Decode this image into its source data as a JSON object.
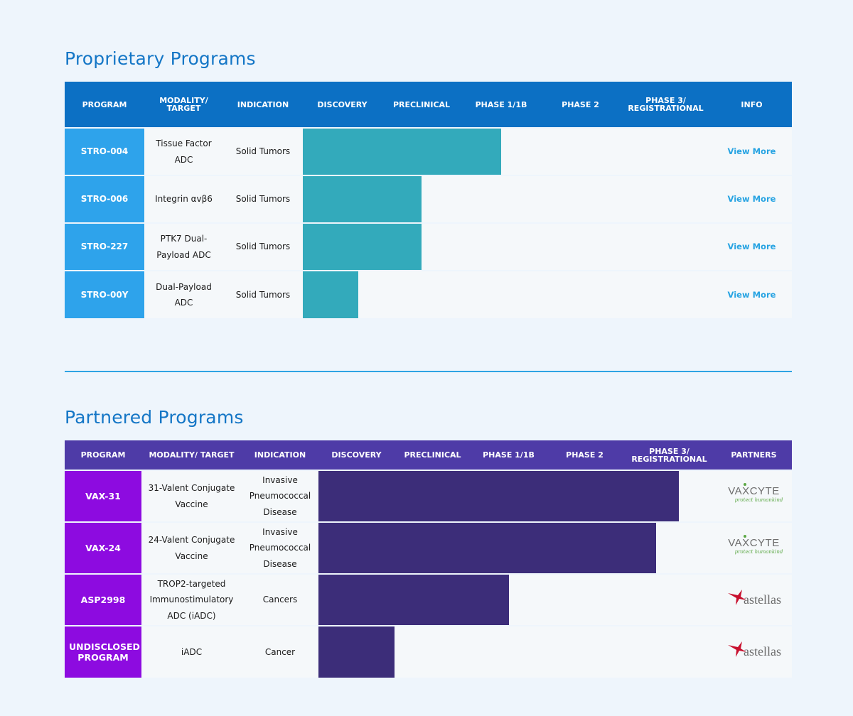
{
  "proprietary": {
    "title": "Proprietary Programs",
    "headers": [
      "PROGRAM",
      "MODALITY/ TARGET",
      "INDICATION",
      "DISCOVERY",
      "PRECLINICAL",
      "PHASE 1/1B",
      "PHASE 2",
      "PHASE 3/ REGISTRATIONAL",
      "INFO"
    ],
    "rows": [
      {
        "program": "STRO-004",
        "modality": "Tissue Factor ADC",
        "indication": "Solid Tumors",
        "progress_phases": 2.5,
        "info": "View More"
      },
      {
        "program": "STRO-006",
        "modality": "Integrin αvβ6",
        "indication": "Solid Tumors",
        "progress_phases": 1.5,
        "info": "View More"
      },
      {
        "program": "STRO-227",
        "modality": "PTK7 Dual-Payload ADC",
        "indication": "Solid Tumors",
        "progress_phases": 1.5,
        "info": "View More"
      },
      {
        "program": "STRO-00Y",
        "modality": "Dual-Payload ADC",
        "indication": "Solid Tumors",
        "progress_phases": 0.7,
        "info": "View More"
      }
    ],
    "colors": {
      "header": "#0c70c4",
      "program": "#2ea3eb",
      "bar": "#33aabb",
      "link": "#26a3e2"
    }
  },
  "partnered": {
    "title": "Partnered Programs",
    "headers": [
      "PROGRAM",
      "MODALITY/ TARGET",
      "INDICATION",
      "DISCOVERY",
      "PRECLINICAL",
      "PHASE 1/1B",
      "PHASE 2",
      "PHASE 3/ REGISTRATIONAL",
      "PARTNERS"
    ],
    "rows": [
      {
        "program": "VAX-31",
        "modality": "31-Valent Conjugate Vaccine",
        "indication": "Invasive Pneumococcal Disease",
        "progress_phases": 4.6,
        "partner": "vaxcyte"
      },
      {
        "program": "VAX-24",
        "modality": "24-Valent Conjugate Vaccine",
        "indication": "Invasive Pneumococcal Disease",
        "progress_phases": 4.36,
        "partner": "vaxcyte"
      },
      {
        "program": "ASP2998",
        "modality": "TROP2-targeted Immunostimulatory ADC (iADC)",
        "indication": "Cancers",
        "progress_phases": 2.5,
        "partner": "astellas"
      },
      {
        "program": "UNDISCLOSED PROGRAM",
        "modality": "iADC",
        "indication": "Cancer",
        "progress_phases": 1.0,
        "partner": "astellas"
      }
    ],
    "colors": {
      "header": "#4e3ba7",
      "program": "#8d0be0",
      "bar": "#3c2d79"
    }
  },
  "partners": {
    "vaxcyte": {
      "wordmark_a": "VA",
      "wordmark_x": "X",
      "wordmark_b": "CYTE",
      "tagline": "protect humankind",
      "tagline_color": "#5ca845"
    },
    "astellas": {
      "wordmark": "astellas",
      "star_color": "#c8102e"
    }
  }
}
